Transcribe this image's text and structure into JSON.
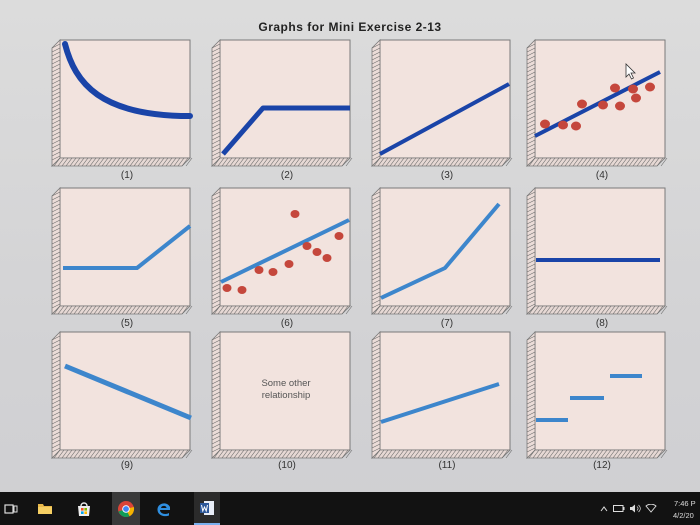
{
  "page": {
    "title": "Graphs for Mini Exercise 2-13"
  },
  "panels": [
    {
      "label": "(1)"
    },
    {
      "label": "(2)"
    },
    {
      "label": "(3)"
    },
    {
      "label": "(4)"
    },
    {
      "label": "(5)"
    },
    {
      "label": "(6)"
    },
    {
      "label": "(7)"
    },
    {
      "label": "(8)"
    },
    {
      "label": "(9)"
    },
    {
      "label": "(10)",
      "note_line1": "Some other",
      "note_line2": "relationship"
    },
    {
      "label": "(11)"
    },
    {
      "label": "(12)"
    }
  ],
  "colors": {
    "panel_bg": "#f2e3de",
    "line_dark": "#1a44a8",
    "line_light": "#3d86cc",
    "dot": "#c5473c",
    "frame": "#7a7a7a"
  },
  "taskbar": {
    "icons": [
      "task-view-icon",
      "file-explorer-icon",
      "store-icon",
      "chrome-icon",
      "edge-icon",
      "word-icon"
    ],
    "time": "7:46 P",
    "date": "4/2/20"
  }
}
